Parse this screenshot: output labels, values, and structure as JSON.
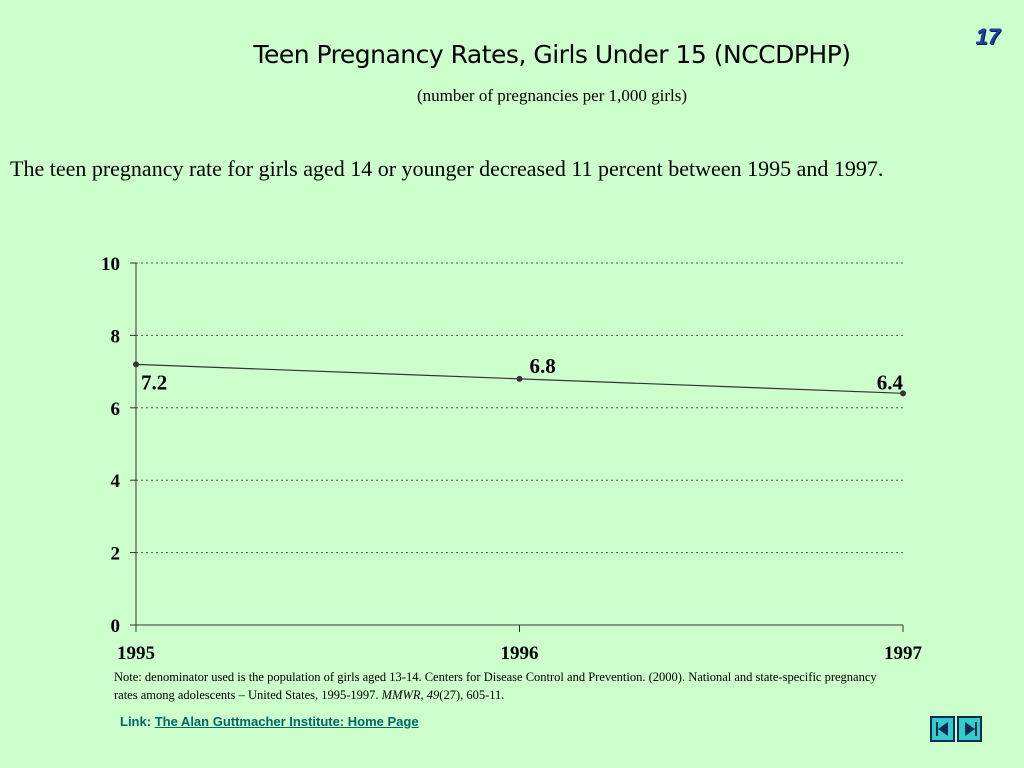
{
  "slide": {
    "number": "17"
  },
  "header": {
    "title": "Teen Pregnancy Rates, Girls Under 15 (NCCDPHP)",
    "subtitle": "(number of pregnancies per 1,000 girls)"
  },
  "body_text": "The teen pregnancy rate for girls aged 14 or younger decreased 11 percent between 1995 and 1997.",
  "chart_data": {
    "type": "line",
    "x": [
      "1995",
      "1996",
      "1997"
    ],
    "values": [
      7.2,
      6.8,
      6.4
    ],
    "data_labels": [
      "7.2",
      "6.8",
      "6.4"
    ],
    "ylim": [
      0,
      10
    ],
    "yticks": [
      0,
      2,
      4,
      6,
      8,
      10
    ],
    "grid": true,
    "legend": false,
    "line_color": "#333333"
  },
  "note": {
    "text_before": "Note: denominator used is the population of girls aged 13-14. Centers for Disease Control and Prevention. (2000). National and state-specific pregnancy rates among adolescents – United States, 1995-1997. ",
    "journal": "MMWR, 49",
    "text_after": "(27), 605-11."
  },
  "link": {
    "label": "Link:",
    "text": "The Alan Guttmacher Institute: Home Page"
  },
  "nav": {
    "prev_icon": "previous-slide-arrow",
    "next_icon": "next-slide-arrow",
    "button_color": "#33cccc"
  }
}
